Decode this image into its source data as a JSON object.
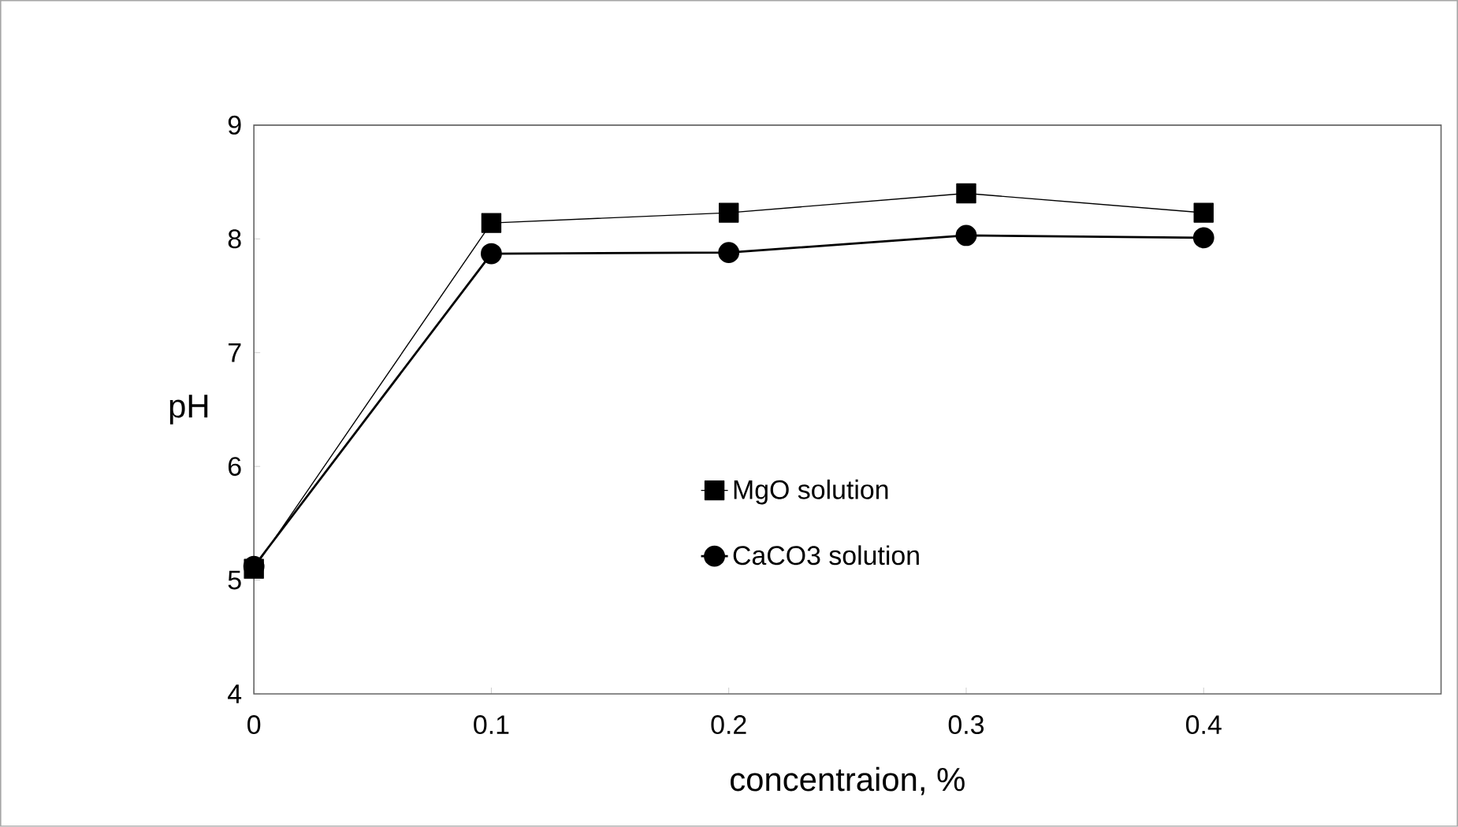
{
  "chart_data": {
    "type": "line",
    "xlabel": "concentraion, %",
    "ylabel": "pH",
    "x": [
      0,
      0.1,
      0.2,
      0.3,
      0.4
    ],
    "series": [
      {
        "name": "MgO solution",
        "color": "#000000",
        "marker": "square",
        "values": [
          5.1,
          8.14,
          8.23,
          8.4,
          8.23
        ]
      },
      {
        "name": "CaCO3 solution",
        "color": "#000000",
        "marker": "circle",
        "values": [
          5.12,
          7.87,
          7.88,
          8.03,
          8.01
        ]
      }
    ],
    "xlim": [
      0,
      0.5
    ],
    "ylim": [
      4,
      9
    ],
    "xticks": [
      0,
      0.1,
      0.2,
      0.3,
      0.4
    ],
    "yticks": [
      4,
      5,
      6,
      7,
      8,
      9
    ],
    "grid": false,
    "legend": "center",
    "line_style": "solid"
  }
}
